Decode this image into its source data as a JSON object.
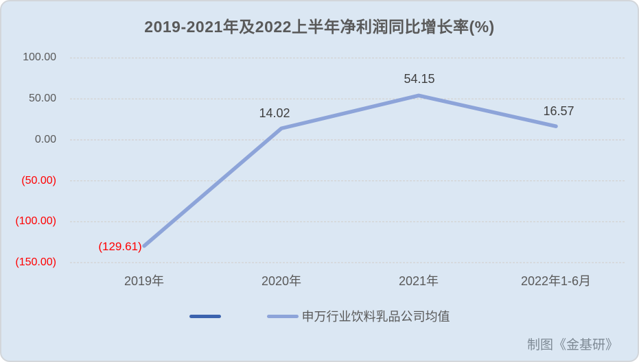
{
  "colors": {
    "background": "#dbe7f3",
    "border": "#d2d6da",
    "gridline": "#d4d4d4",
    "series_light": "#8da4d9",
    "series_dark": "#3b63ae",
    "negative": "#ff0000",
    "text": "#595959",
    "label_dark": "#3f3f3f",
    "credit": "#7e8a95"
  },
  "chart_data": {
    "type": "line",
    "title": "2019-2021年及2022上半年净利润同比增长率(%)",
    "categories": [
      "2019年",
      "2020年",
      "2021年",
      "2022年1-6月"
    ],
    "series": [
      {
        "name": "",
        "color": "#3b63ae",
        "values": []
      },
      {
        "name": "申万行业饮料乳品公司均值",
        "color": "#8da4d9",
        "values": [
          -129.61,
          14.02,
          54.15,
          16.57
        ]
      }
    ],
    "point_labels": [
      "(129.61)",
      "14.02",
      "54.15",
      "16.57"
    ],
    "y_ticks": [
      {
        "value": 100,
        "label": "100.00",
        "negative": false
      },
      {
        "value": 50,
        "label": "50.00",
        "negative": false
      },
      {
        "value": 0,
        "label": "0.00",
        "negative": false
      },
      {
        "value": -50,
        "label": "(50.00)",
        "negative": true
      },
      {
        "value": -100,
        "label": "(100.00)",
        "negative": true
      },
      {
        "value": -150,
        "label": "(150.00)",
        "negative": true
      }
    ],
    "ylim": [
      -150,
      100
    ],
    "grid": true,
    "legend_position": "bottom"
  },
  "legend": {
    "items": [
      {
        "label": "",
        "color": "#3b63ae"
      },
      {
        "label": "申万行业饮料乳品公司均值",
        "color": "#8da4d9"
      }
    ]
  },
  "credit": "制图《金基研》"
}
